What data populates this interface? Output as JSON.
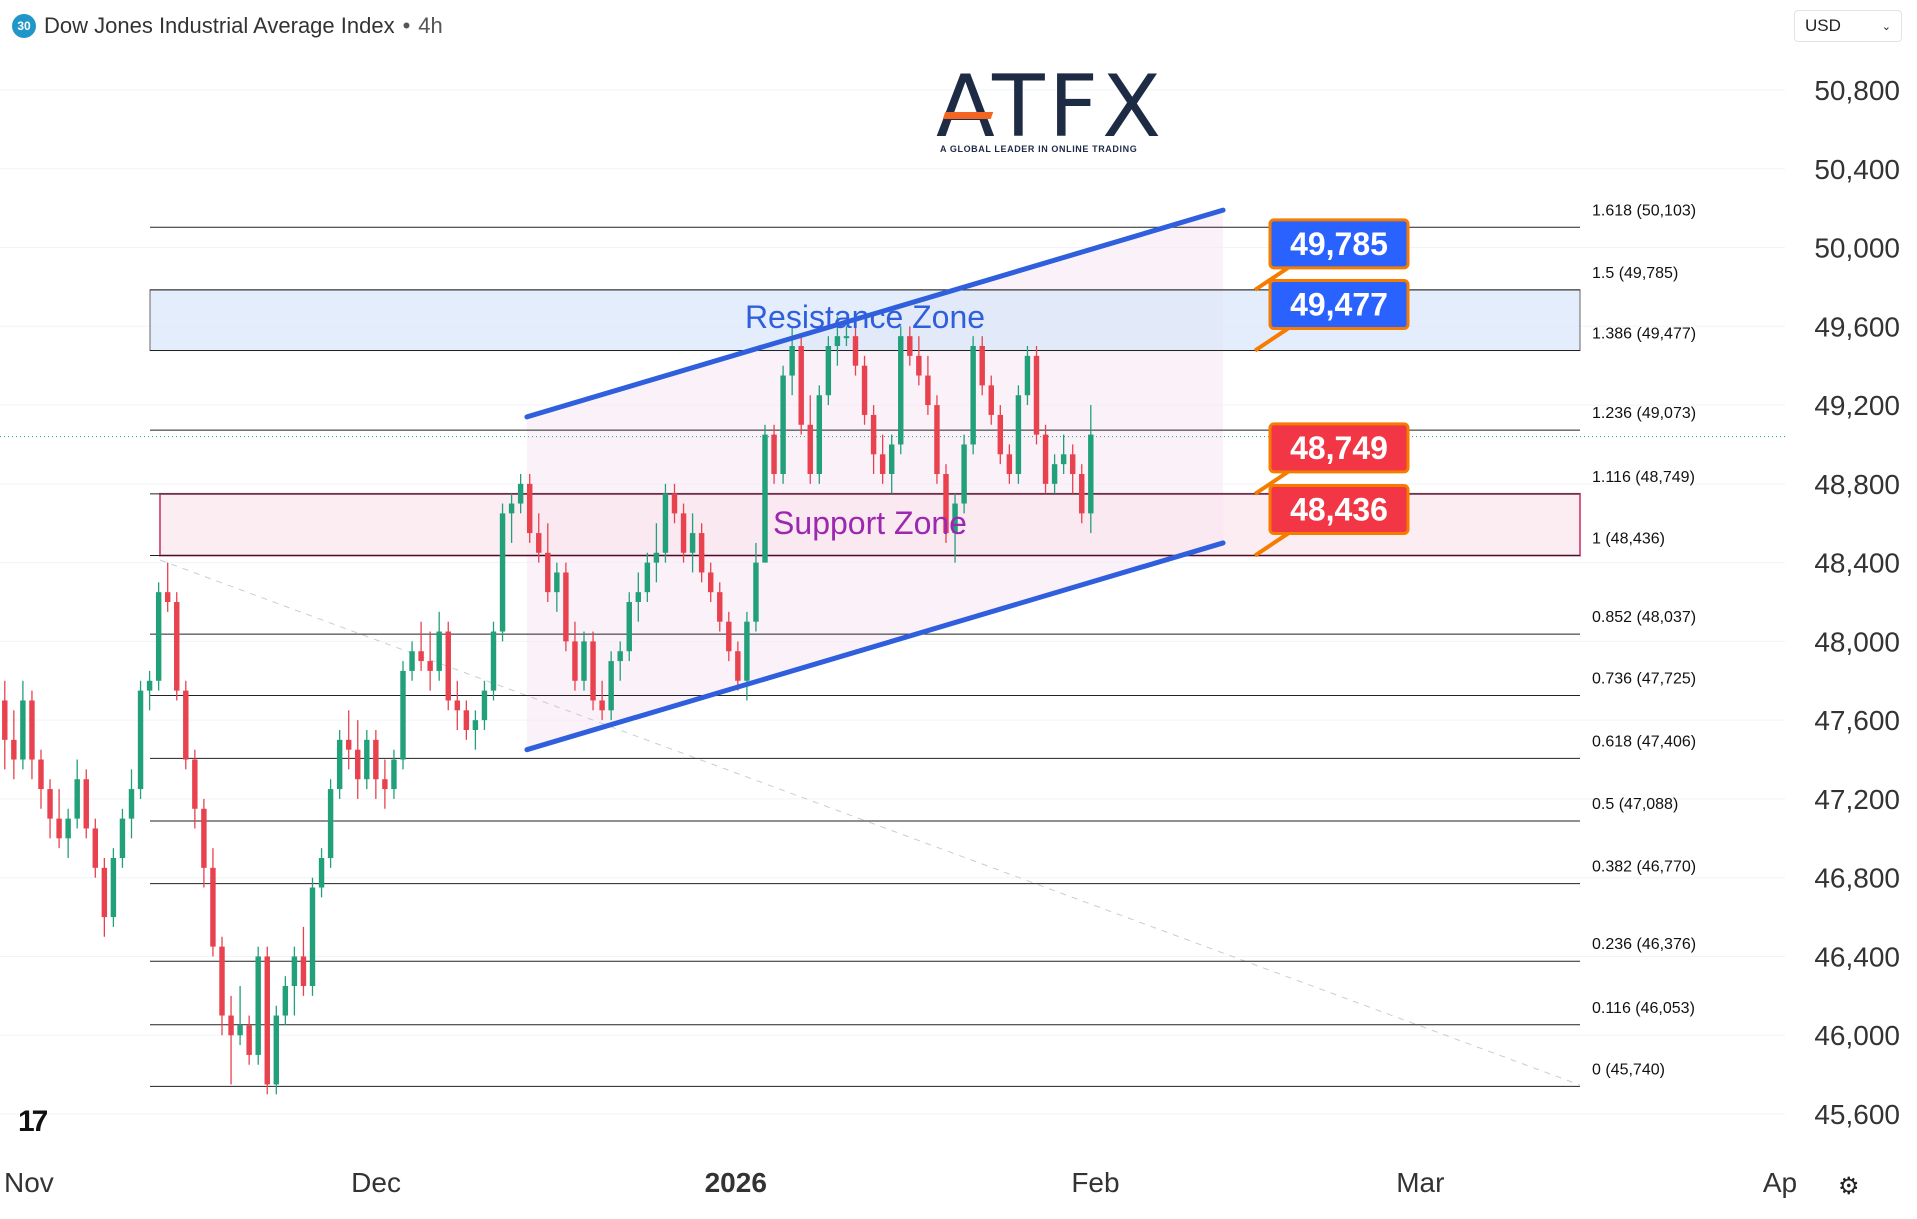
{
  "header": {
    "badge": "30",
    "title": "Dow Jones Industrial Average Index",
    "separator": "•",
    "timeframe": "4h"
  },
  "currency": {
    "label": "USD",
    "icon": "chevron-down-icon"
  },
  "logo": {
    "name": "ATFX",
    "tagline": "A GLOBAL LEADER IN ONLINE TRADING"
  },
  "colors": {
    "up": "#22a07a",
    "down": "#e8424f",
    "channel": "#2f5fdc",
    "resistance_fill": "#dbe8fb",
    "support_fill": "#fbe6ee",
    "support_border": "#c2185b",
    "label_blue": "#2962ff",
    "label_red": "#f23645",
    "label_border": "#f57c00"
  },
  "chart_data": {
    "type": "candlestick",
    "title": "Dow Jones Industrial Average Index",
    "y_axis": {
      "ticks": [
        45600,
        46000,
        46400,
        46800,
        47200,
        47600,
        48000,
        48400,
        48800,
        49200,
        49600,
        50000,
        50400,
        50800
      ],
      "tick_labels": [
        "45,600",
        "46,000",
        "46,400",
        "46,800",
        "47,200",
        "47,600",
        "48,000",
        "48,400",
        "48,800",
        "49,200",
        "49,600",
        "50,000",
        "50,400",
        "50,800"
      ],
      "range": [
        45450,
        51000
      ]
    },
    "x_axis": {
      "labels": [
        {
          "text": "Nov",
          "day": 0,
          "bold": false
        },
        {
          "text": "Dec",
          "day": 30,
          "bold": false
        },
        {
          "text": "2026",
          "day": 61,
          "bold": true
        },
        {
          "text": "Feb",
          "day": 92,
          "bold": false
        },
        {
          "text": "Mar",
          "day": 120,
          "bold": false
        },
        {
          "text": "Ap",
          "day": 151,
          "bold": false
        }
      ],
      "range_days": [
        -2.5,
        155
      ]
    },
    "fibonacci": [
      {
        "ratio": "1.618",
        "value": 50103,
        "label": "1.618 (50,103)"
      },
      {
        "ratio": "1.5",
        "value": 49785,
        "label": "1.5 (49,785)"
      },
      {
        "ratio": "1.386",
        "value": 49477,
        "label": "1.386 (49,477)"
      },
      {
        "ratio": "1.236",
        "value": 49073,
        "label": "1.236 (49,073)"
      },
      {
        "ratio": "1.116",
        "value": 48749,
        "label": "1.116 (48,749)"
      },
      {
        "ratio": "1",
        "value": 48436,
        "label": "1 (48,436)"
      },
      {
        "ratio": "0.852",
        "value": 48037,
        "label": "0.852 (48,037)"
      },
      {
        "ratio": "0.736",
        "value": 47725,
        "label": "0.736 (47,725)"
      },
      {
        "ratio": "0.618",
        "value": 47406,
        "label": "0.618 (47,406)"
      },
      {
        "ratio": "0.5",
        "value": 47088,
        "label": "0.5 (47,088)"
      },
      {
        "ratio": "0.382",
        "value": 46770,
        "label": "0.382 (46,770)"
      },
      {
        "ratio": "0.236",
        "value": 46376,
        "label": "0.236 (46,376)"
      },
      {
        "ratio": "0.116",
        "value": 46053,
        "label": "0.116 (46,053)"
      },
      {
        "ratio": "0",
        "value": 45740,
        "label": "0 (45,740)"
      }
    ],
    "zones": [
      {
        "name": "Resistance Zone",
        "low": 49477,
        "high": 49785
      },
      {
        "name": "Support Zone",
        "low": 48436,
        "high": 48749
      }
    ],
    "price_labels": [
      {
        "text": "49,785",
        "value": 49785,
        "color": "blue"
      },
      {
        "text": "49,477",
        "value": 49477,
        "color": "blue"
      },
      {
        "text": "48,749",
        "value": 48749,
        "color": "red"
      },
      {
        "text": "48,436",
        "value": 48436,
        "color": "red"
      }
    ],
    "channel": {
      "upper": [
        {
          "day": 43,
          "value": 49140
        },
        {
          "day": 103,
          "value": 50190
        }
      ],
      "lower": [
        {
          "day": 43,
          "value": 47450
        },
        {
          "day": 103,
          "value": 48500
        }
      ]
    },
    "current_price": 49040,
    "candles_day_start": -2,
    "candles_day_step": 0.78,
    "candles": [
      [
        47700,
        47800,
        47350,
        47500
      ],
      [
        47500,
        47650,
        47300,
        47400
      ],
      [
        47400,
        47800,
        47350,
        47700
      ],
      [
        47700,
        47750,
        47300,
        47400
      ],
      [
        47400,
        47450,
        47150,
        47250
      ],
      [
        47250,
        47300,
        47000,
        47100
      ],
      [
        47100,
        47250,
        46950,
        47000
      ],
      [
        47000,
        47150,
        46900,
        47100
      ],
      [
        47100,
        47400,
        47050,
        47300
      ],
      [
        47300,
        47350,
        47000,
        47050
      ],
      [
        47050,
        47100,
        46800,
        46850
      ],
      [
        46850,
        46900,
        46500,
        46600
      ],
      [
        46600,
        46950,
        46550,
        46900
      ],
      [
        46900,
        47150,
        46850,
        47100
      ],
      [
        47100,
        47350,
        47000,
        47250
      ],
      [
        47250,
        47800,
        47200,
        47750
      ],
      [
        47750,
        47850,
        47650,
        47800
      ],
      [
        47800,
        48300,
        47750,
        48250
      ],
      [
        48250,
        48400,
        48150,
        48200
      ],
      [
        48200,
        48250,
        47700,
        47750
      ],
      [
        47750,
        47800,
        47350,
        47400
      ],
      [
        47400,
        47450,
        47050,
        47150
      ],
      [
        47150,
        47200,
        46750,
        46850
      ],
      [
        46850,
        46950,
        46400,
        46450
      ],
      [
        46450,
        46500,
        46000,
        46100
      ],
      [
        46100,
        46200,
        45750,
        46000
      ],
      [
        46000,
        46250,
        45950,
        46050
      ],
      [
        46050,
        46100,
        45850,
        45900
      ],
      [
        45900,
        46450,
        45850,
        46400
      ],
      [
        46400,
        46450,
        45700,
        45750
      ],
      [
        45750,
        46150,
        45700,
        46100
      ],
      [
        46100,
        46300,
        46050,
        46250
      ],
      [
        46250,
        46450,
        46100,
        46400
      ],
      [
        46400,
        46550,
        46200,
        46250
      ],
      [
        46250,
        46800,
        46200,
        46750
      ],
      [
        46750,
        46950,
        46700,
        46900
      ],
      [
        46900,
        47300,
        46850,
        47250
      ],
      [
        47250,
        47550,
        47200,
        47500
      ],
      [
        47500,
        47650,
        47350,
        47450
      ],
      [
        47450,
        47600,
        47200,
        47300
      ],
      [
        47300,
        47550,
        47250,
        47500
      ],
      [
        47500,
        47550,
        47200,
        47300
      ],
      [
        47300,
        47400,
        47150,
        47250
      ],
      [
        47250,
        47450,
        47200,
        47400
      ],
      [
        47400,
        47900,
        47350,
        47850
      ],
      [
        47850,
        48000,
        47800,
        47950
      ],
      [
        47950,
        48100,
        47850,
        47900
      ],
      [
        47900,
        48050,
        47750,
        47850
      ],
      [
        47850,
        48150,
        47800,
        48050
      ],
      [
        48050,
        48100,
        47650,
        47700
      ],
      [
        47700,
        47800,
        47550,
        47650
      ],
      [
        47650,
        47700,
        47500,
        47550
      ],
      [
        47550,
        47650,
        47450,
        47600
      ],
      [
        47600,
        47800,
        47550,
        47750
      ],
      [
        47750,
        48100,
        47700,
        48050
      ],
      [
        48050,
        48700,
        48000,
        48650
      ],
      [
        48650,
        48750,
        48500,
        48700
      ],
      [
        48700,
        48850,
        48650,
        48800
      ],
      [
        48800,
        48850,
        48500,
        48550
      ],
      [
        48550,
        48650,
        48400,
        48450
      ],
      [
        48450,
        48600,
        48200,
        48250
      ],
      [
        48250,
        48400,
        48150,
        48350
      ],
      [
        48350,
        48400,
        47950,
        48000
      ],
      [
        48000,
        48100,
        47750,
        47800
      ],
      [
        47800,
        48050,
        47750,
        48000
      ],
      [
        48000,
        48050,
        47650,
        47700
      ],
      [
        47700,
        47800,
        47600,
        47650
      ],
      [
        47650,
        47950,
        47600,
        47900
      ],
      [
        47900,
        48000,
        47800,
        47950
      ],
      [
        47950,
        48250,
        47900,
        48200
      ],
      [
        48200,
        48350,
        48100,
        48250
      ],
      [
        48250,
        48450,
        48200,
        48400
      ],
      [
        48400,
        48600,
        48300,
        48450
      ],
      [
        48450,
        48800,
        48400,
        48750
      ],
      [
        48750,
        48800,
        48600,
        48650
      ],
      [
        48650,
        48700,
        48400,
        48450
      ],
      [
        48450,
        48650,
        48350,
        48550
      ],
      [
        48550,
        48600,
        48300,
        48350
      ],
      [
        48350,
        48400,
        48200,
        48250
      ],
      [
        48250,
        48300,
        48050,
        48100
      ],
      [
        48100,
        48150,
        47900,
        47950
      ],
      [
        47950,
        48000,
        47750,
        47800
      ],
      [
        47800,
        48150,
        47700,
        48100
      ],
      [
        48100,
        48500,
        48050,
        48400
      ],
      [
        48400,
        49100,
        48400,
        49050
      ],
      [
        49050,
        49100,
        48800,
        48850
      ],
      [
        48850,
        49400,
        48800,
        49350
      ],
      [
        49350,
        49600,
        49250,
        49500
      ],
      [
        49500,
        49550,
        49050,
        49100
      ],
      [
        49100,
        49250,
        48800,
        48850
      ],
      [
        48850,
        49300,
        48800,
        49250
      ],
      [
        49250,
        49550,
        49200,
        49500
      ],
      [
        49500,
        49650,
        49400,
        49550
      ],
      [
        49550,
        49600,
        49500,
        49550
      ],
      [
        49550,
        49650,
        49350,
        49400
      ],
      [
        49400,
        49450,
        49100,
        49150
      ],
      [
        49150,
        49200,
        48850,
        48950
      ],
      [
        48950,
        49050,
        48800,
        48850
      ],
      [
        48850,
        49050,
        48750,
        49000
      ],
      [
        49000,
        49600,
        48950,
        49550
      ],
      [
        49550,
        49600,
        49400,
        49450
      ],
      [
        49450,
        49550,
        49300,
        49350
      ],
      [
        49350,
        49450,
        49150,
        49200
      ],
      [
        49200,
        49250,
        48800,
        48850
      ],
      [
        48850,
        48900,
        48500,
        48550
      ],
      [
        48550,
        48750,
        48400,
        48700
      ],
      [
        48700,
        49050,
        48650,
        49000
      ],
      [
        49000,
        49550,
        48950,
        49500
      ],
      [
        49500,
        49550,
        49250,
        49300
      ],
      [
        49300,
        49350,
        49100,
        49150
      ],
      [
        49150,
        49200,
        48900,
        48950
      ],
      [
        48950,
        49000,
        48800,
        48850
      ],
      [
        48850,
        49300,
        48800,
        49250
      ],
      [
        49250,
        49500,
        49200,
        49450
      ],
      [
        49450,
        49500,
        49000,
        49050
      ],
      [
        49050,
        49100,
        48750,
        48800
      ],
      [
        48800,
        48950,
        48750,
        48900
      ],
      [
        48900,
        49050,
        48850,
        48950
      ],
      [
        48950,
        49000,
        48750,
        48850
      ],
      [
        48850,
        48900,
        48600,
        48650
      ],
      [
        48650,
        49200,
        48550,
        49050
      ]
    ]
  }
}
